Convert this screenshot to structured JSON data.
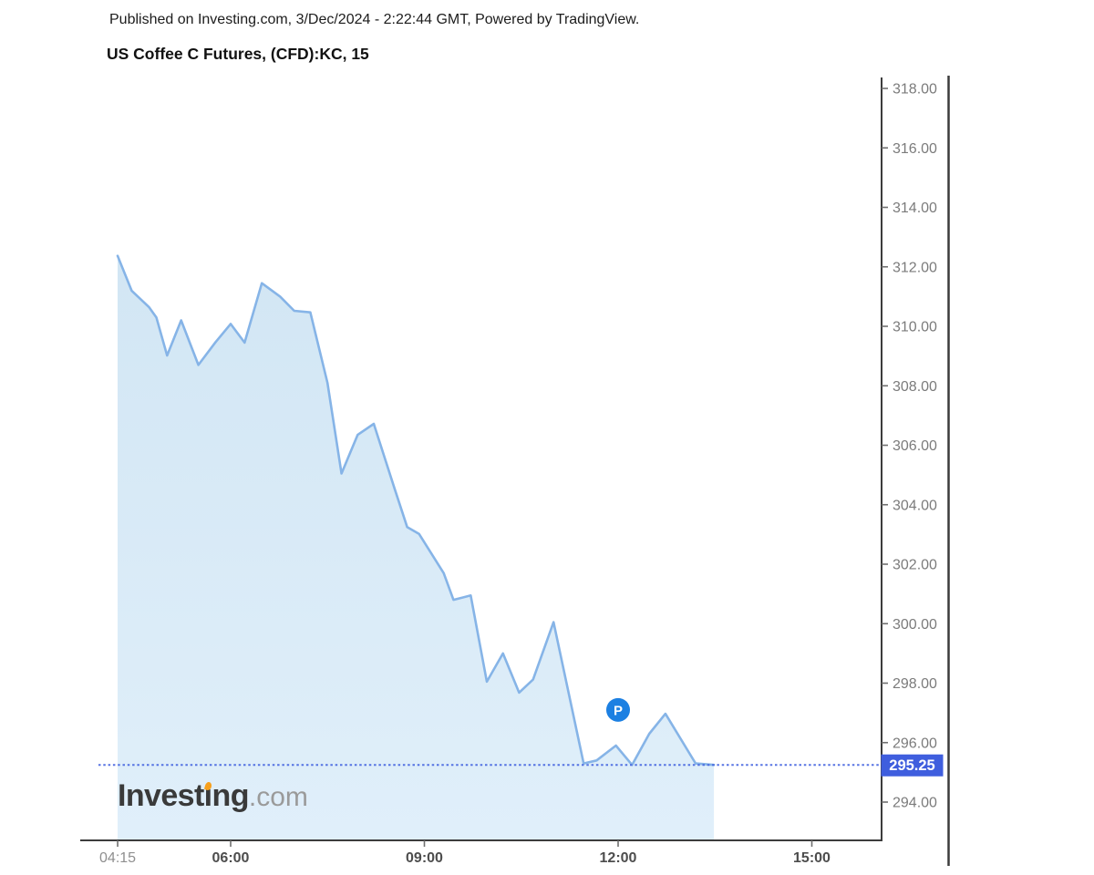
{
  "header": {
    "published_line": "Published on Investing.com, 3/Dec/2024 - 2:22:44 GMT, Powered by TradingView.",
    "title": "US Coffee C Futures, (CFD):KC, 15"
  },
  "logo": {
    "part1": "Invest",
    "i_char": "ı",
    "part2": "ng",
    "suffix": ".com",
    "full_name": "Investing.com"
  },
  "colors": {
    "line": "#86B4E7",
    "fill_top": "#D2E6F4",
    "fill_bottom": "#E0EFFA",
    "price_line": "#4565E0",
    "badge_bg": "#3F5EDE",
    "badge_text": "#FFFFFF",
    "marker_bg": "#1C80E2",
    "marker_text": "#FFFFFF",
    "axis": "#3C3C3C",
    "y_label": "#7B7B7B",
    "x_label_major": "#4D4D4D",
    "x_label_minor": "#8F8F8F",
    "logo_text": "#3A3A3A",
    "logo_com": "#9A9A9A",
    "logo_flame": "#F6A01E"
  },
  "chart_data": {
    "type": "area",
    "title": "US Coffee C Futures, (CFD):KC, 15",
    "interval_minutes": 15,
    "x_axis": {
      "ticks": [
        {
          "label": "04:15",
          "major": false
        },
        {
          "label": "06:00",
          "major": true
        },
        {
          "label": "09:00",
          "major": true
        },
        {
          "label": "12:00",
          "major": true
        },
        {
          "label": "15:00",
          "major": true
        }
      ]
    },
    "y_axis": {
      "tick_labels": [
        "318.00",
        "316.00",
        "314.00",
        "312.00",
        "310.00",
        "308.00",
        "306.00",
        "304.00",
        "302.00",
        "300.00",
        "298.00",
        "296.00",
        "294.00"
      ],
      "range_shown": [
        292.7,
        318.4
      ]
    },
    "series": [
      {
        "name": "US Coffee C Futures (CFD):KC 15-min",
        "points": [
          [
            "04:15",
            312.37
          ],
          [
            "04:28",
            311.2
          ],
          [
            "04:44",
            310.65
          ],
          [
            "04:51",
            310.3
          ],
          [
            "05:01",
            309.02
          ],
          [
            "05:14",
            310.2
          ],
          [
            "05:30",
            308.7
          ],
          [
            "05:46",
            309.47
          ],
          [
            "06:00",
            310.08
          ],
          [
            "06:13",
            309.45
          ],
          [
            "06:29",
            311.45
          ],
          [
            "06:46",
            311.0
          ],
          [
            "06:59",
            310.52
          ],
          [
            "07:14",
            310.47
          ],
          [
            "07:30",
            308.1
          ],
          [
            "07:43",
            305.05
          ],
          [
            "07:58",
            306.35
          ],
          [
            "08:13",
            306.72
          ],
          [
            "08:32",
            304.58
          ],
          [
            "08:44",
            303.25
          ],
          [
            "08:55",
            303.02
          ],
          [
            "09:18",
            301.7
          ],
          [
            "09:27",
            300.8
          ],
          [
            "09:43",
            300.95
          ],
          [
            "09:58",
            298.05
          ],
          [
            "10:13",
            299.0
          ],
          [
            "10:28",
            297.68
          ],
          [
            "10:41",
            298.12
          ],
          [
            "11:00",
            300.05
          ],
          [
            "11:28",
            295.3
          ],
          [
            "11:40",
            295.4
          ],
          [
            "11:58",
            295.9
          ],
          [
            "12:13",
            295.25
          ],
          [
            "12:29",
            296.3
          ],
          [
            "12:44",
            296.97
          ],
          [
            "13:12",
            295.3
          ],
          [
            "13:29",
            295.25
          ]
        ]
      }
    ],
    "last_price": 295.25,
    "last_price_label": "295.25",
    "price_line": {
      "value": 295.25,
      "style": "dotted"
    },
    "marker": {
      "label": "P",
      "time": "12:00",
      "price": 297.1
    }
  }
}
